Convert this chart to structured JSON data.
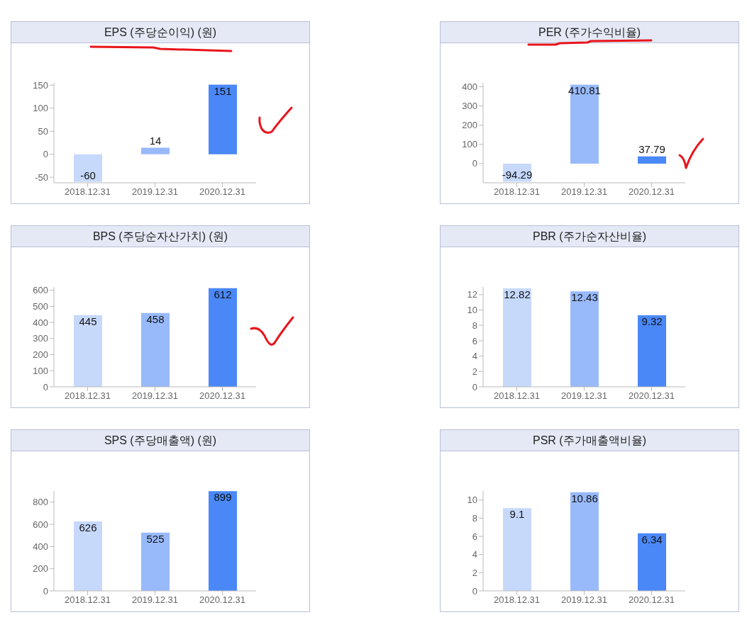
{
  "chart_data": [
    {
      "type": "bar",
      "title": "EPS (주당순이익) (원)",
      "categories": [
        "2018.12.31",
        "2019.12.31",
        "2020.12.31"
      ],
      "values": [
        -60,
        14,
        151
      ],
      "colors": [
        "#c6d9fb",
        "#98bafb",
        "#4a88f7"
      ],
      "ylim": [
        -62,
        155
      ],
      "yticks": [
        -50,
        0,
        50,
        100,
        150
      ],
      "data_labels": true
    },
    {
      "type": "bar",
      "title": "PER (주가수익비율)",
      "categories": [
        "2018.12.31",
        "2019.12.31",
        "2020.12.31"
      ],
      "values": [
        -94.29,
        410.81,
        37.79
      ],
      "colors": [
        "#c6d9fb",
        "#98bafb",
        "#4a88f7"
      ],
      "ylim": [
        -100,
        420
      ],
      "yticks": [
        0,
        100,
        200,
        300,
        400
      ],
      "data_labels": true
    },
    {
      "type": "bar",
      "title": "BPS (주당순자산가치) (원)",
      "categories": [
        "2018.12.31",
        "2019.12.31",
        "2020.12.31"
      ],
      "values": [
        445,
        458,
        612
      ],
      "colors": [
        "#c6d9fb",
        "#98bafb",
        "#4a88f7"
      ],
      "ylim": [
        0,
        620
      ],
      "yticks": [
        0,
        100,
        200,
        300,
        400,
        500,
        600
      ],
      "data_labels": true
    },
    {
      "type": "bar",
      "title": "PBR (주가순자산비율)",
      "categories": [
        "2018.12.31",
        "2019.12.31",
        "2020.12.31"
      ],
      "values": [
        12.82,
        12.43,
        9.32
      ],
      "colors": [
        "#c6d9fb",
        "#98bafb",
        "#4a88f7"
      ],
      "ylim": [
        0,
        13
      ],
      "yticks": [
        0,
        2,
        4,
        6,
        8,
        10,
        12
      ],
      "data_labels": true
    },
    {
      "type": "bar",
      "title": "SPS (주당매출액) (원)",
      "categories": [
        "2018.12.31",
        "2019.12.31",
        "2020.12.31"
      ],
      "values": [
        626,
        525,
        899
      ],
      "colors": [
        "#c6d9fb",
        "#98bafb",
        "#4a88f7"
      ],
      "ylim": [
        0,
        900
      ],
      "yticks": [
        0,
        200,
        400,
        600,
        800
      ],
      "data_labels": true
    },
    {
      "type": "bar",
      "title": "PSR (주가매출액비율)",
      "categories": [
        "2018.12.31",
        "2019.12.31",
        "2020.12.31"
      ],
      "values": [
        9.1,
        10.86,
        6.34
      ],
      "colors": [
        "#c6d9fb",
        "#98bafb",
        "#4a88f7"
      ],
      "ylim": [
        0,
        11
      ],
      "yticks": [
        0,
        2,
        4,
        6,
        8,
        10
      ],
      "data_labels": true
    }
  ]
}
